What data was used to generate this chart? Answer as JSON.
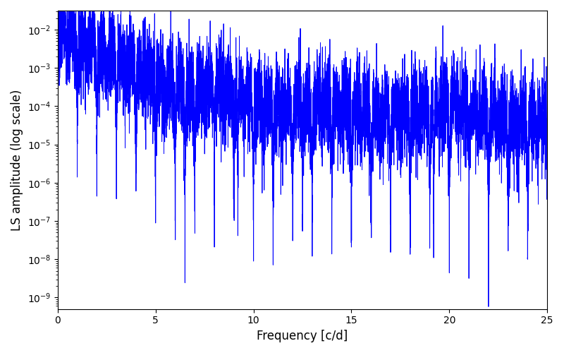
{
  "title": "",
  "xlabel": "Frequency [c/d]",
  "ylabel": "LS amplitude (log scale)",
  "line_color": "#0000ff",
  "line_width": 0.7,
  "xlim": [
    0,
    25
  ],
  "ylim_log": [
    -9.3,
    -1.5
  ],
  "freq_min": 0.0,
  "freq_max": 25.0,
  "n_points": 8000,
  "background_color": "#ffffff",
  "figsize": [
    8.0,
    5.0
  ],
  "dpi": 100
}
